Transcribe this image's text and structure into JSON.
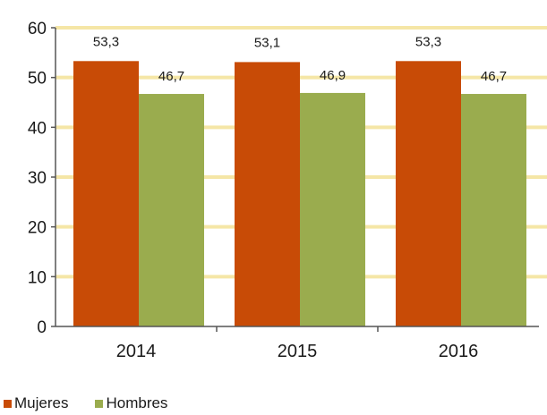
{
  "chart_data": {
    "type": "bar",
    "categories": [
      "2014",
      "2015",
      "2016"
    ],
    "series": [
      {
        "name": "Mujeres",
        "values": [
          53.3,
          53.1,
          53.3
        ],
        "labels": [
          "53,3",
          "53,1",
          "53,3"
        ],
        "color": "#c84b06"
      },
      {
        "name": "Hombres",
        "values": [
          46.7,
          46.9,
          46.7
        ],
        "labels": [
          "46,7",
          "46,9",
          "46,7"
        ],
        "color": "#9aac4e"
      }
    ],
    "ylim": [
      0,
      60
    ],
    "yticks": [
      "0",
      "10",
      "20",
      "30",
      "40",
      "50",
      "60"
    ],
    "grid": true,
    "gridline_color": "#f5e6a6",
    "legend_position": "bottom-left",
    "title": "",
    "xlabel": "",
    "ylabel": ""
  }
}
